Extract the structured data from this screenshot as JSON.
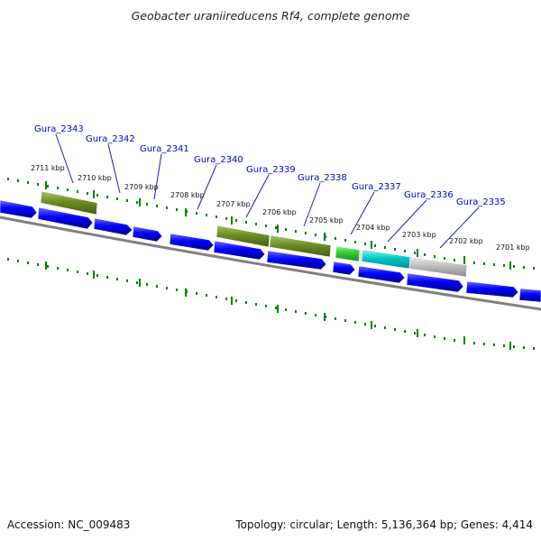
{
  "title": "Geobacter uraniireducens Rf4, complete genome",
  "footer": {
    "accession": "Accession: NC_009483",
    "summary": "Topology: circular; Length: 5,136,364 bp; Genes: 4,414"
  },
  "kbp_labels": [
    "2711 kbp",
    "2710 kbp",
    "2709 kbp",
    "2708 kbp",
    "2707 kbp",
    "2706 kbp",
    "2705 kbp",
    "2704 kbp",
    "2703 kbp",
    "2702 kbp",
    "2701 kbp"
  ],
  "gene_labels": [
    "Gura_2343",
    "Gura_2342",
    "Gura_2341",
    "Gura_2340",
    "Gura_2339",
    "Gura_2338",
    "Gura_2337",
    "Gura_2336",
    "Gura_2335"
  ],
  "colors": {
    "forward_cds": "#0000ff",
    "olive_feature": "#6b8e23",
    "green_feature": "#32cd32",
    "cyan_feature": "#00c8c8",
    "gray_feature": "#bebebe",
    "backbone": "#808080",
    "tick": "#008000",
    "label_blue": "#0000c8"
  }
}
